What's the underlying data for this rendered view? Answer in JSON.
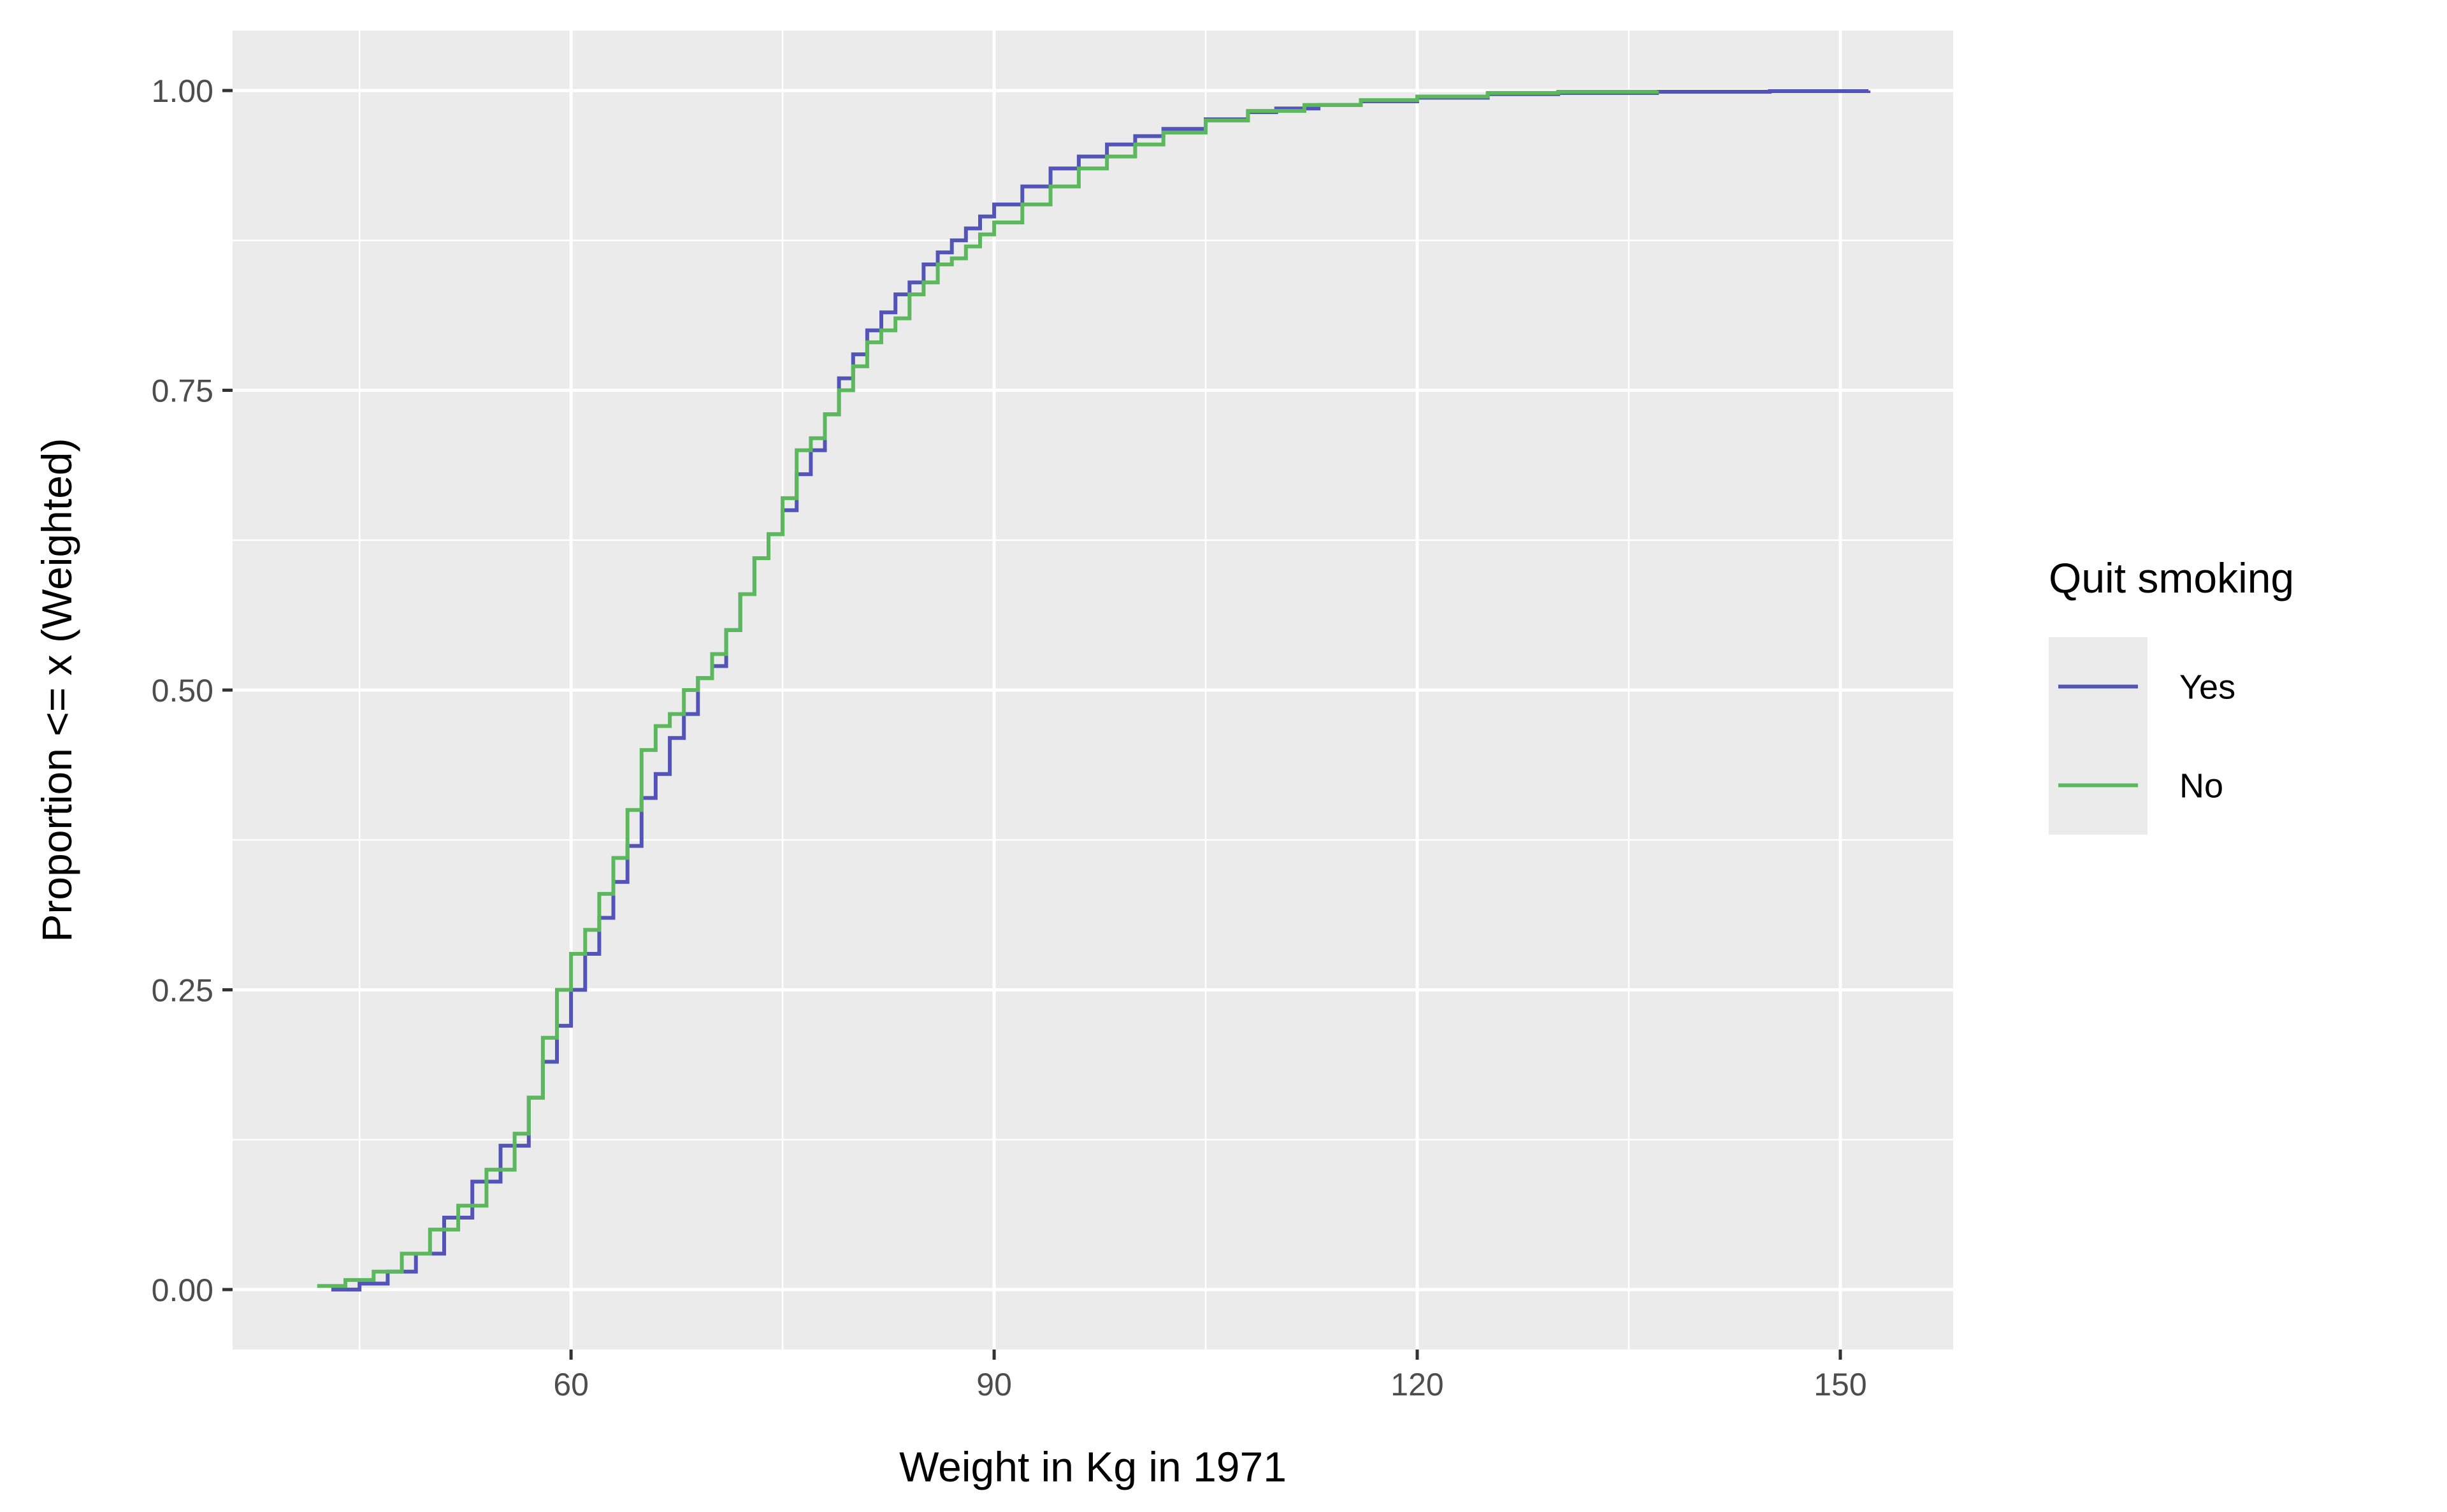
{
  "chart_data": {
    "type": "line",
    "step": true,
    "title": "",
    "xlabel": "Weight in Kg in 1971",
    "ylabel": "Proportion <= x (Weighted)",
    "xlim": [
      36,
      158
    ],
    "ylim": [
      -0.05,
      1.05
    ],
    "x_ticks": [
      60,
      90,
      120,
      150
    ],
    "x_tick_labels": [
      "60",
      "90",
      "120",
      "150"
    ],
    "y_ticks": [
      0,
      0.25,
      0.5,
      0.75,
      1
    ],
    "y_tick_labels": [
      "0.00",
      "0.25",
      "0.50",
      "0.75",
      "1.00"
    ],
    "grid": true,
    "panel_background": "#EBEBEB",
    "legend": {
      "title": "Quit smoking",
      "position": "right"
    },
    "series": [
      {
        "name": "Yes",
        "color": "#5254B8",
        "x": [
          43,
          45,
          47,
          49,
          51,
          53,
          55,
          57,
          58,
          59,
          60,
          61,
          62,
          63,
          64,
          65,
          66,
          67,
          68,
          69,
          70,
          71,
          72,
          73,
          74,
          75,
          76,
          77,
          78,
          79,
          80,
          81,
          82,
          83,
          84,
          85,
          86,
          87,
          88,
          89,
          90,
          92,
          94,
          96,
          98,
          100,
          102,
          105,
          108,
          110,
          113,
          116,
          120,
          125,
          130,
          137,
          145,
          152
        ],
        "y": [
          0.0,
          0.005,
          0.015,
          0.03,
          0.06,
          0.09,
          0.12,
          0.16,
          0.19,
          0.22,
          0.25,
          0.28,
          0.31,
          0.34,
          0.37,
          0.41,
          0.43,
          0.46,
          0.48,
          0.51,
          0.52,
          0.55,
          0.58,
          0.61,
          0.63,
          0.65,
          0.68,
          0.7,
          0.73,
          0.76,
          0.78,
          0.8,
          0.815,
          0.83,
          0.84,
          0.855,
          0.865,
          0.875,
          0.885,
          0.895,
          0.905,
          0.92,
          0.935,
          0.945,
          0.955,
          0.962,
          0.968,
          0.976,
          0.982,
          0.985,
          0.988,
          0.991,
          0.994,
          0.997,
          0.998,
          0.999,
          0.9995,
          1.0
        ]
      },
      {
        "name": "No",
        "color": "#5CB85C",
        "x": [
          42,
          44,
          46,
          48,
          50,
          52,
          54,
          56,
          57,
          58,
          59,
          60,
          61,
          62,
          63,
          64,
          65,
          66,
          67,
          68,
          69,
          70,
          71,
          72,
          73,
          74,
          75,
          76,
          77,
          78,
          79,
          80,
          81,
          82,
          83,
          84,
          85,
          86,
          87,
          88,
          89,
          90,
          92,
          94,
          96,
          98,
          100,
          102,
          105,
          108,
          112,
          116,
          120,
          125,
          130,
          137
        ],
        "y": [
          0.003,
          0.008,
          0.015,
          0.03,
          0.05,
          0.07,
          0.1,
          0.13,
          0.16,
          0.21,
          0.25,
          0.28,
          0.3,
          0.33,
          0.36,
          0.4,
          0.45,
          0.47,
          0.48,
          0.5,
          0.51,
          0.53,
          0.55,
          0.58,
          0.61,
          0.63,
          0.66,
          0.7,
          0.71,
          0.73,
          0.75,
          0.77,
          0.79,
          0.8,
          0.81,
          0.83,
          0.84,
          0.855,
          0.86,
          0.87,
          0.88,
          0.89,
          0.905,
          0.92,
          0.935,
          0.945,
          0.955,
          0.965,
          0.975,
          0.983,
          0.988,
          0.992,
          0.995,
          0.998,
          0.999,
          1.0
        ]
      }
    ]
  }
}
